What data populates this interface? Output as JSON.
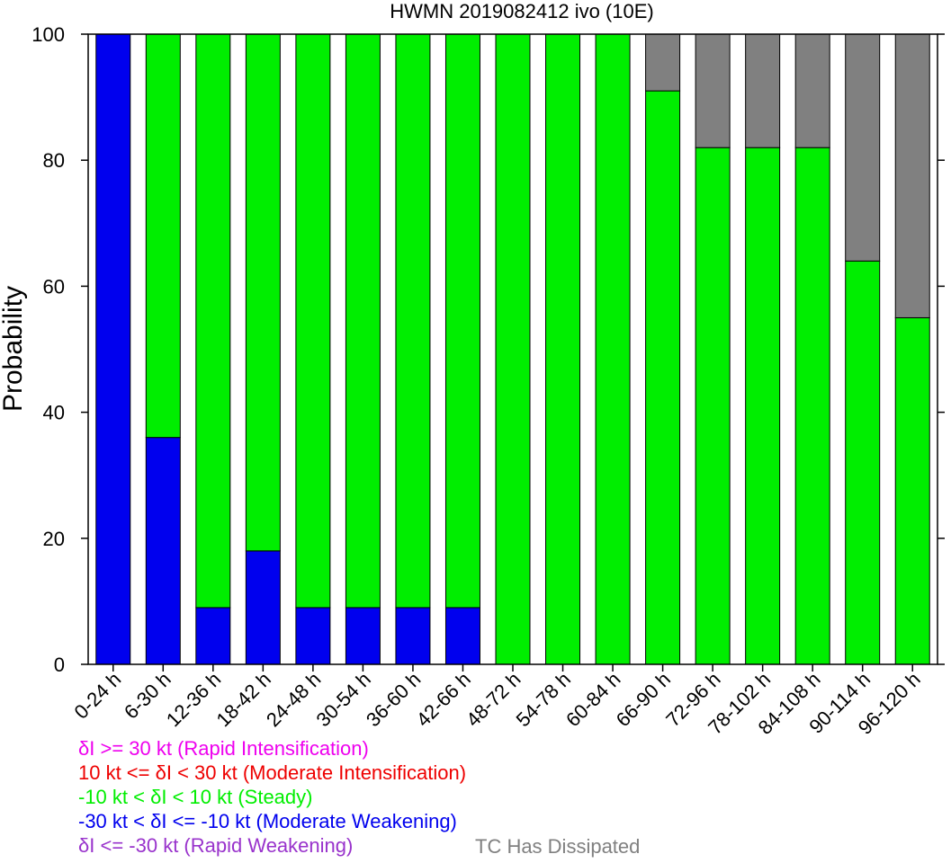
{
  "chart_data": {
    "type": "bar",
    "stacked": true,
    "title": "HWMN 2019082412 ivo (10E)",
    "xlabel": "",
    "ylabel": "Probability",
    "ylim": [
      0,
      100
    ],
    "yticks": [
      0,
      20,
      40,
      60,
      80,
      100
    ],
    "grid": false,
    "categories": [
      "0-24 h",
      "6-30 h",
      "12-36 h",
      "18-42 h",
      "24-48 h",
      "30-54 h",
      "36-60 h",
      "42-66 h",
      "48-72 h",
      "54-78 h",
      "60-84 h",
      "66-90 h",
      "72-96 h",
      "78-102 h",
      "84-108 h",
      "90-114 h",
      "96-120 h"
    ],
    "series": [
      {
        "name": "δI <= -30 kt (Rapid Weakening)",
        "color": "#9933cc",
        "values": [
          0,
          0,
          0,
          0,
          0,
          0,
          0,
          0,
          0,
          0,
          0,
          0,
          0,
          0,
          0,
          0,
          0
        ]
      },
      {
        "name": "-30 kt < δI <= -10 kt (Moderate Weakening)",
        "color": "#0000ee",
        "values": [
          100,
          36,
          9,
          18,
          9,
          9,
          9,
          9,
          0,
          0,
          0,
          0,
          0,
          0,
          0,
          0,
          0
        ]
      },
      {
        "name": "-10 kt < δI < 10 kt (Steady)",
        "color": "#00ee00",
        "values": [
          0,
          64,
          91,
          82,
          91,
          91,
          91,
          91,
          100,
          100,
          100,
          91,
          82,
          82,
          82,
          64,
          55
        ]
      },
      {
        "name": "10 kt <= δI < 30 kt (Moderate Intensification)",
        "color": "#ee0000",
        "values": [
          0,
          0,
          0,
          0,
          0,
          0,
          0,
          0,
          0,
          0,
          0,
          0,
          0,
          0,
          0,
          0,
          0
        ]
      },
      {
        "name": "δI >= 30 kt (Rapid Intensification)",
        "color": "#ee00ee",
        "values": [
          0,
          0,
          0,
          0,
          0,
          0,
          0,
          0,
          0,
          0,
          0,
          0,
          0,
          0,
          0,
          0,
          0
        ]
      },
      {
        "name": "TC Has Dissipated",
        "color": "#808080",
        "values": [
          0,
          0,
          0,
          0,
          0,
          0,
          0,
          0,
          0,
          0,
          0,
          9,
          18,
          18,
          18,
          36,
          45
        ]
      }
    ],
    "stack_order": [
      "-30 kt < δI <= -10 kt (Moderate Weakening)",
      "-10 kt < δI < 10 kt (Steady)",
      "TC Has Dissipated"
    ],
    "legend": {
      "placement": "bottom-left",
      "entries": [
        {
          "text": "δI >= 30 kt (Rapid Intensification)",
          "color": "#ee00ee"
        },
        {
          "text": "10 kt <= δI < 30 kt (Moderate Intensification)",
          "color": "#ee0000"
        },
        {
          "text": "-10 kt < δI < 10 kt (Steady)",
          "color": "#00ee00"
        },
        {
          "text": "-30 kt < δI <= -10 kt (Moderate Weakening)",
          "color": "#0000ee"
        },
        {
          "text": "δI <= -30 kt (Rapid Weakening)",
          "color": "#9933cc"
        }
      ],
      "dissipated": {
        "text": "TC Has Dissipated",
        "color": "#808080"
      }
    }
  }
}
